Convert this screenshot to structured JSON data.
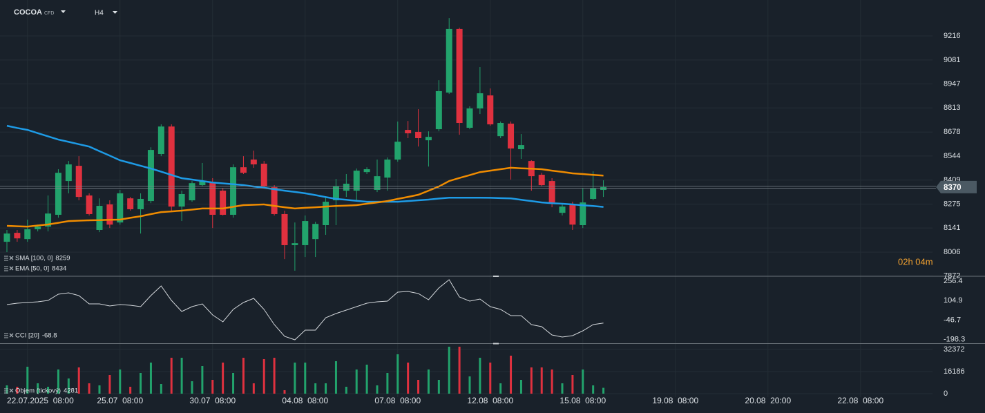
{
  "header": {
    "symbol": "COCOA",
    "instrument_type": "CFD",
    "timeframe": "H4"
  },
  "timer": "02h 04m",
  "chart_data": [
    {
      "type": "candlestick",
      "up_color": "#22a36c",
      "down_color": "#e0313f",
      "candles": {
        "open": [
          8064,
          8114,
          8079,
          8134,
          8149,
          8215,
          8404,
          8489,
          8323,
          8130,
          8273,
          8172,
          8307,
          8246,
          8292,
          8555,
          8709,
          8261,
          8296,
          8381,
          8396,
          8350,
          8215,
          8481,
          8524,
          8501,
          8369,
          8219,
          8045,
          8045,
          8079,
          8157,
          8296,
          8350,
          8350,
          8454,
          8354,
          8423,
          8524,
          8690,
          8679,
          8632,
          8694,
          8899,
          9255,
          8702,
          8810,
          8883,
          8655,
          8725,
          8582,
          8516,
          8439,
          8404,
          8226,
          8269,
          8157,
          8304,
          8354
        ],
        "high": [
          8130,
          8130,
          8188,
          8160,
          8323,
          8470,
          8516,
          8543,
          8335,
          8307,
          8296,
          8354,
          8315,
          8335,
          8593,
          8721,
          8721,
          8350,
          8404,
          8505,
          8420,
          8365,
          8497,
          8543,
          8574,
          8516,
          8381,
          8238,
          8172,
          8211,
          8176,
          8315,
          8416,
          8443,
          8474,
          8481,
          8524,
          8536,
          8737,
          8740,
          8806,
          8682,
          8968,
          9316,
          9262,
          8822,
          9042,
          8922,
          8737,
          8737,
          8667,
          8520,
          8450,
          8420,
          8280,
          8288,
          8365,
          8458,
          8408
        ],
        "low": [
          8006,
          8064,
          8064,
          8122,
          8122,
          8199,
          8335,
          8296,
          8211,
          8118,
          8141,
          8160,
          8238,
          8110,
          8280,
          8543,
          8238,
          8180,
          8288,
          8373,
          8141,
          8211,
          8199,
          8443,
          8478,
          8365,
          8211,
          7967,
          7902,
          7979,
          7979,
          8103,
          8157,
          8315,
          8296,
          8443,
          8342,
          8350,
          8512,
          8644,
          8597,
          8485,
          8682,
          8891,
          8663,
          8694,
          8779,
          8713,
          8644,
          8412,
          8528,
          8350,
          8373,
          8257,
          8211,
          8130,
          8141,
          8296,
          8315
        ],
        "close": [
          8110,
          8083,
          8134,
          8149,
          8222,
          8450,
          8497,
          8315,
          8219,
          8265,
          8160,
          8335,
          8246,
          8304,
          8578,
          8709,
          8261,
          8331,
          8392,
          8404,
          8215,
          8215,
          8481,
          8450,
          8497,
          8373,
          8219,
          8045,
          8056,
          8180,
          8164,
          8288,
          8373,
          8389,
          8462,
          8470,
          8431,
          8524,
          8624,
          8671,
          8644,
          8651,
          8907,
          9255,
          8729,
          8810,
          8895,
          8721,
          8729,
          8586,
          8605,
          8431,
          8381,
          8284,
          8261,
          8160,
          8284,
          8362,
          8370
        ]
      },
      "series": [
        {
          "name": "SMA [100, 0]",
          "color": "#1e9be6",
          "values": [
            8713,
            8701,
            8690,
            8672,
            8654,
            8636,
            8623,
            8610,
            8597,
            8571,
            8546,
            8520,
            8505,
            8489,
            8474,
            8456,
            8438,
            8420,
            8412,
            8404,
            8396,
            8391,
            8386,
            8381,
            8373,
            8366,
            8358,
            8350,
            8343,
            8335,
            8325,
            8314,
            8304,
            8299,
            8293,
            8288,
            8288,
            8288,
            8288,
            8292,
            8296,
            8300,
            8306,
            8311,
            8311,
            8311,
            8311,
            8310,
            8308,
            8307,
            8299,
            8292,
            8284,
            8280,
            8277,
            8273,
            8268,
            8264,
            8259
          ]
        },
        {
          "name": "EMA [50, 0]",
          "color": "#f08c00",
          "values": [
            8153,
            8151,
            8149,
            8155,
            8161,
            8170,
            8180,
            8182,
            8184,
            8185,
            8187,
            8188,
            8198,
            8207,
            8219,
            8230,
            8234,
            8238,
            8244,
            8250,
            8250,
            8250,
            8260,
            8269,
            8271,
            8273,
            8265,
            8257,
            8250,
            8254,
            8257,
            8261,
            8264,
            8266,
            8269,
            8277,
            8284,
            8292,
            8304,
            8315,
            8327,
            8350,
            8373,
            8404,
            8421,
            8437,
            8454,
            8462,
            8470,
            8478,
            8475,
            8473,
            8470,
            8462,
            8455,
            8447,
            8443,
            8438,
            8434
          ]
        }
      ],
      "xlim": [
        0,
        90
      ],
      "ylim": [
        7871,
        9417
      ],
      "yticks": [
        7872,
        8006,
        8141,
        8275,
        8409,
        8544,
        8678,
        8813,
        8947,
        9081,
        9216
      ],
      "grid": true
    },
    {
      "type": "line",
      "series": [
        {
          "name": "CCI [20]",
          "color": "#d4d8dc",
          "values": [
            74.2,
            85.0,
            90.3,
            95.7,
            106.4,
            154.6,
            165.4,
            143.9,
            79.6,
            79.6,
            63.5,
            74.2,
            68.9,
            58.2,
            143.9,
            219.0,
            106.4,
            20.6,
            58.2,
            79.6,
            -6.2,
            -59.8,
            36.7,
            90.3,
            122.5,
            36.7,
            -81.2,
            -172.3,
            -199.1,
            -124.1,
            -124.1,
            -27.6,
            4.6,
            31.4,
            58.2,
            85.0,
            95.7,
            101.0,
            170.7,
            176.1,
            160.0,
            111.8,
            202.9,
            267.2,
            133.2,
            101.0,
            117.1,
            58.2,
            36.7,
            -11.5,
            -11.5,
            -81.2,
            -97.3,
            -161.6,
            -177.7,
            -167.0,
            -129.4,
            -81.2,
            -68.8
          ]
        }
      ],
      "xlim": [
        0,
        90
      ],
      "ylim": [
        -226,
        294
      ],
      "yticks": [
        -198.3,
        -46.7,
        104.9,
        256.4
      ],
      "grid": false
    },
    {
      "type": "bar",
      "up_color": "#22a36c",
      "down_color": "#e0313f",
      "series": [
        {
          "name": "Objem (tickový)",
          "values": [
            6067,
            5056,
            19718,
            7584,
            5056,
            17696,
            11123,
            19213,
            7584,
            6067,
            13651,
            17696,
            5056,
            15168,
            22752,
            7078,
            26291,
            26291,
            9101,
            20224,
            10112,
            22752,
            15168,
            26291,
            7584,
            25280,
            26291,
            2528,
            22752,
            22752,
            7584,
            7584,
            23763,
            5056,
            17696,
            21235,
            6067,
            15168,
            28819,
            22752,
            10112,
            17696,
            10112,
            34381,
            34381,
            12640,
            26291,
            22752,
            7584,
            27808,
            10112,
            19213,
            19213,
            17696,
            7584,
            13651,
            17696,
            6067,
            4281
          ]
        }
      ],
      "xlim": [
        0,
        90
      ],
      "ylim": [
        0,
        36400
      ],
      "yticks": [
        0,
        16186,
        32372
      ],
      "xticks": [
        {
          "value": 2,
          "label": "22.07.2025  08:00"
        },
        {
          "value": 11,
          "label": "25.07  08:00"
        },
        {
          "value": 20,
          "label": "30.07  08:00"
        },
        {
          "value": 29,
          "label": "04.08  08:00"
        },
        {
          "value": 38,
          "label": "07.08  08:00"
        },
        {
          "value": 47,
          "label": "12.08  08:00"
        },
        {
          "value": 56,
          "label": "15.08  08:00"
        },
        {
          "value": 65,
          "label": "19.08  08:00"
        },
        {
          "value": 74,
          "label": "20.08  20:00"
        },
        {
          "value": 83,
          "label": "22.08  08:00"
        }
      ],
      "grid": true
    }
  ]
}
